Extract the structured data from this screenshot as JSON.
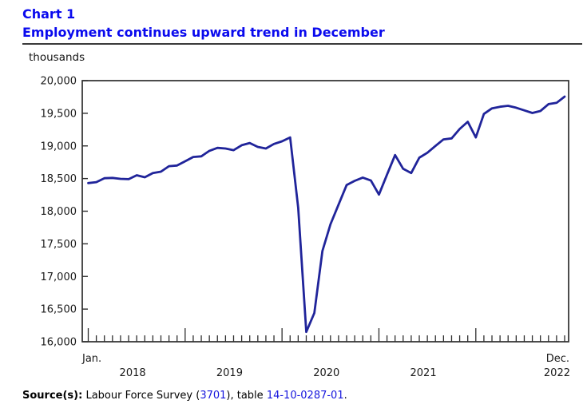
{
  "header": {
    "chart_label": "Chart 1",
    "title": "Employment continues upward trend in December"
  },
  "chart_data": {
    "type": "line",
    "title": "Employment continues upward trend in December",
    "unit_label": "thousands",
    "ylabel": "thousands",
    "xlabel": "",
    "ylim": [
      16000,
      20000
    ],
    "ytick_step": 500,
    "ytick_labels": [
      "16,000",
      "16,500",
      "17,000",
      "17,500",
      "18,000",
      "18,500",
      "19,000",
      "19,500",
      "20,000"
    ],
    "x_first_label": "Jan.",
    "x_last_label": "Dec.",
    "year_labels": [
      "2018",
      "2019",
      "2020",
      "2021",
      "2022"
    ],
    "frequency": "monthly",
    "x": [
      "2018-01",
      "2018-02",
      "2018-03",
      "2018-04",
      "2018-05",
      "2018-06",
      "2018-07",
      "2018-08",
      "2018-09",
      "2018-10",
      "2018-11",
      "2018-12",
      "2019-01",
      "2019-02",
      "2019-03",
      "2019-04",
      "2019-05",
      "2019-06",
      "2019-07",
      "2019-08",
      "2019-09",
      "2019-10",
      "2019-11",
      "2019-12",
      "2020-01",
      "2020-02",
      "2020-03",
      "2020-04",
      "2020-05",
      "2020-06",
      "2020-07",
      "2020-08",
      "2020-09",
      "2020-10",
      "2020-11",
      "2020-12",
      "2021-01",
      "2021-02",
      "2021-03",
      "2021-04",
      "2021-05",
      "2021-06",
      "2021-07",
      "2021-08",
      "2021-09",
      "2021-10",
      "2021-11",
      "2021-12",
      "2022-01",
      "2022-02",
      "2022-03",
      "2022-04",
      "2022-05",
      "2022-06",
      "2022-07",
      "2022-08",
      "2022-09",
      "2022-10",
      "2022-11",
      "2022-12"
    ],
    "values": [
      18430,
      18445,
      18505,
      18510,
      18495,
      18490,
      18550,
      18520,
      18585,
      18605,
      18690,
      18700,
      18765,
      18830,
      18840,
      18925,
      18970,
      18960,
      18935,
      19010,
      19045,
      18985,
      18960,
      19030,
      19070,
      19130,
      18050,
      16150,
      16440,
      17390,
      17800,
      18100,
      18400,
      18465,
      18515,
      18470,
      18255,
      18560,
      18860,
      18650,
      18585,
      18820,
      18895,
      19000,
      19100,
      19115,
      19260,
      19370,
      19130,
      19490,
      19575,
      19600,
      19615,
      19585,
      19545,
      19505,
      19535,
      19640,
      19660,
      19755
    ],
    "grid": false,
    "legend_position": "none"
  },
  "colors": {
    "title_blue": "#0a0aee",
    "line_navy": "#20249a",
    "axis_dark": "#2e2e2e",
    "text_dark": "#1a1a1a",
    "link_blue": "#1515dd"
  },
  "footer": {
    "source_label": "Source(s):",
    "part1": " Labour Force Survey (",
    "link_survey": "3701",
    "part2": "), table ",
    "link_table": "14-10-0287-01",
    "part3": "."
  }
}
